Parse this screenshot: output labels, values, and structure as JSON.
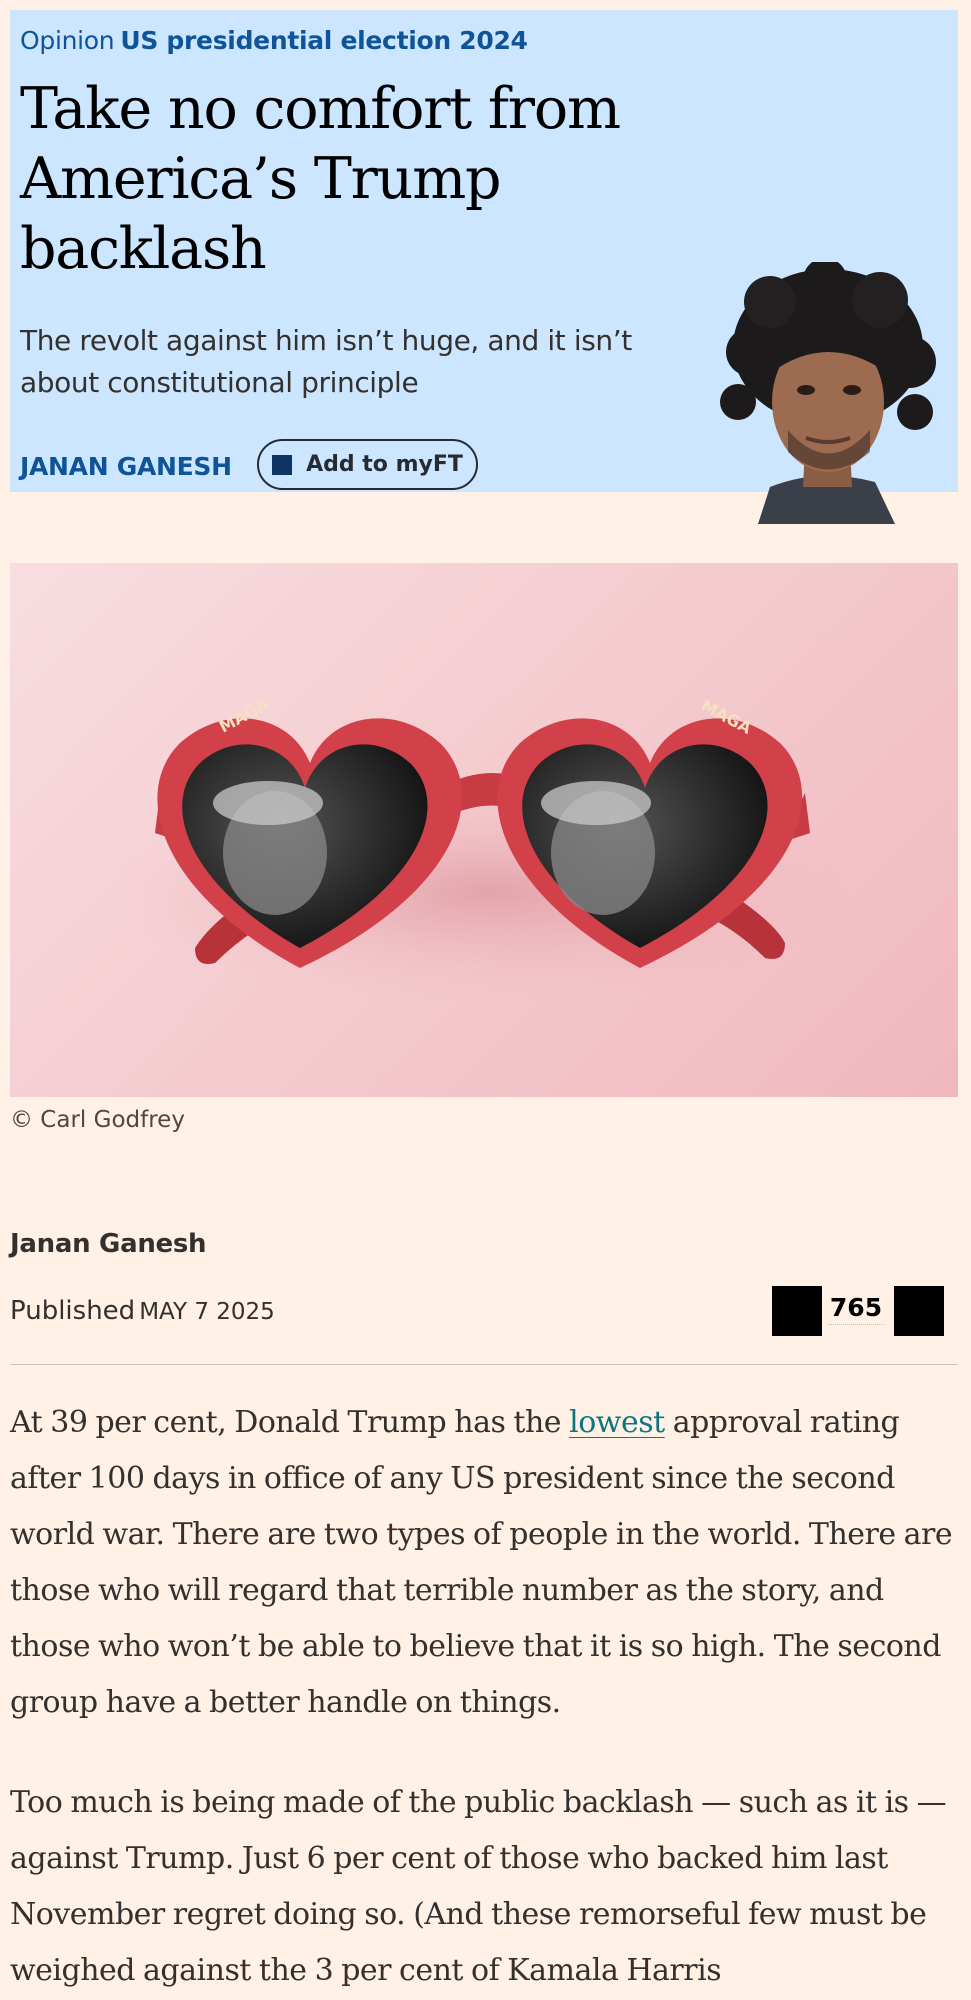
{
  "header": {
    "section": "Opinion",
    "topic": "US presidential election 2024",
    "headline": "Take no comfort from America’s Trump backlash",
    "standfirst": "The revolt against him isn’t huge, and it isn’t about constitutional principle",
    "author": "Janan Ganesh",
    "myft_button": "Add to myFT"
  },
  "image": {
    "caption": "© Carl Godfrey",
    "glasses_text": "MAGA"
  },
  "byline": {
    "name": "Janan Ganesh",
    "published_label": "Published",
    "date": "MAY 7 2025",
    "comment_count": "765"
  },
  "article": {
    "p1_before": "At 39 per cent, Donald Trump has the ",
    "p1_link": "lowest",
    "p1_after": " approval rating after 100 days in office of any US president since the second world war. There are two types of people in the world. There are those who will regard that terrible number as the story, and those who won’t be able to believe that it is so high. The second group have a better handle on things.",
    "p2": "Too much is being made of the public backlash — such as it is — against Trump. Just 6 per cent of those who backed him last November regret doing so. (And these remorseful few must be weighed against the 3 per cent of Kamala Harris"
  },
  "colors": {
    "page_bg": "#fff1e5",
    "header_bg": "#cce6ff",
    "link": "#0f5499",
    "article_link": "#0d7680"
  }
}
